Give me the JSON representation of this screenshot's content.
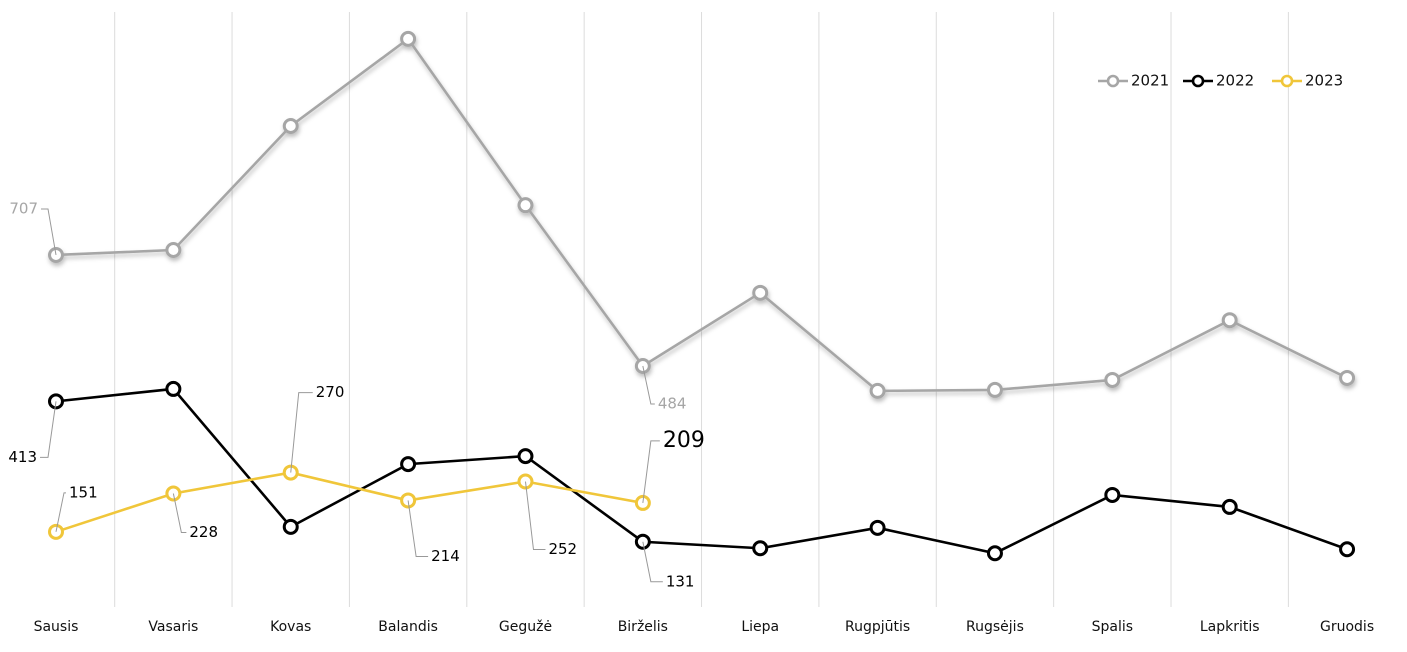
{
  "chart_data": {
    "type": "line",
    "categories": [
      "Sausis",
      "Vasaris",
      "Kovas",
      "Balandis",
      "Gegužė",
      "Birželis",
      "Liepa",
      "Rugpjūtis",
      "Rugsėjis",
      "Spalis",
      "Lapkritis",
      "Gruodis"
    ],
    "series": [
      {
        "name": "2021",
        "color": "#a6a6a6",
        "values": [
          707,
          717,
          966,
          1141,
          807,
          484,
          631,
          434,
          436,
          456,
          576,
          460
        ]
      },
      {
        "name": "2022",
        "color": "#000000",
        "values": [
          413,
          438,
          161,
          287,
          303,
          131,
          118,
          159,
          108,
          225,
          201,
          116
        ]
      },
      {
        "name": "2023",
        "color": "#f0c63a",
        "values": [
          151,
          228,
          270,
          214,
          252,
          209,
          null,
          null,
          null,
          null,
          null,
          null
        ]
      }
    ],
    "ylim": [
      0,
      1199
    ],
    "grid": true,
    "legend": "top-right"
  }
}
